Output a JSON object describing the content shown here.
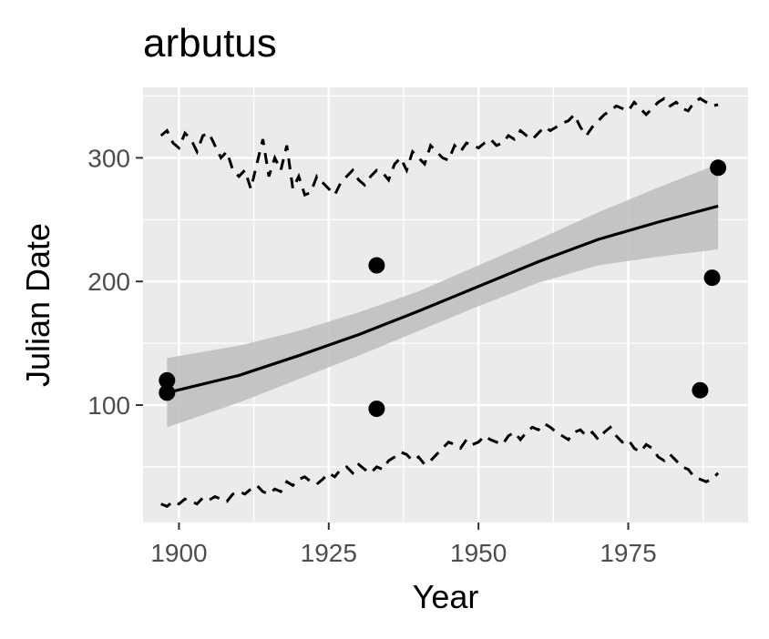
{
  "chart_data": {
    "type": "scatter",
    "title": "arbutus",
    "xlabel": "Year",
    "ylabel": "Julian Date",
    "xlim": [
      1894,
      1995
    ],
    "ylim": [
      5,
      357
    ],
    "x_ticks": [
      1900,
      1925,
      1950,
      1975
    ],
    "y_ticks": [
      100,
      200,
      300
    ],
    "grid": true,
    "legend": "none",
    "colors": {
      "panel": "#ebebeb",
      "grid": "#ffffff",
      "points": "#000000",
      "ribbon": "#bdbdbd",
      "tick_text": "#4d4d4d"
    },
    "points": [
      {
        "x": 1898,
        "y": 120
      },
      {
        "x": 1898,
        "y": 110
      },
      {
        "x": 1933,
        "y": 213
      },
      {
        "x": 1933,
        "y": 97
      },
      {
        "x": 1987,
        "y": 112
      },
      {
        "x": 1989,
        "y": 203
      },
      {
        "x": 1990,
        "y": 292
      }
    ],
    "smooth": {
      "x": [
        1898,
        1910,
        1920,
        1930,
        1940,
        1950,
        1960,
        1970,
        1980,
        1990
      ],
      "y": [
        110,
        124,
        140,
        157,
        176,
        196,
        216,
        234,
        248,
        261
      ],
      "lower": [
        82,
        102,
        121,
        140,
        160,
        180,
        199,
        213,
        220,
        226
      ],
      "upper": [
        138,
        148,
        160,
        175,
        192,
        213,
        234,
        256,
        276,
        295
      ]
    },
    "upper_bound": {
      "style": "dashed",
      "x": [
        1897,
        1898,
        1899,
        1900,
        1901,
        1902,
        1903,
        1904,
        1905,
        1906,
        1907,
        1908,
        1909,
        1910,
        1911,
        1912,
        1913,
        1914,
        1915,
        1916,
        1917,
        1918,
        1919,
        1920,
        1921,
        1922,
        1923,
        1924,
        1925,
        1926,
        1927,
        1928,
        1929,
        1930,
        1931,
        1932,
        1933,
        1934,
        1935,
        1936,
        1937,
        1938,
        1939,
        1940,
        1941,
        1942,
        1943,
        1944,
        1945,
        1946,
        1947,
        1948,
        1949,
        1950,
        1951,
        1952,
        1953,
        1954,
        1955,
        1956,
        1957,
        1958,
        1959,
        1960,
        1961,
        1962,
        1963,
        1964,
        1965,
        1966,
        1967,
        1968,
        1969,
        1970,
        1971,
        1972,
        1973,
        1974,
        1975,
        1976,
        1977,
        1978,
        1979,
        1980,
        1981,
        1982,
        1983,
        1984,
        1985,
        1986,
        1987,
        1988,
        1989,
        1990
      ],
      "y": [
        318,
        322,
        312,
        308,
        320,
        315,
        305,
        318,
        320,
        310,
        300,
        305,
        290,
        285,
        290,
        275,
        295,
        315,
        285,
        300,
        290,
        310,
        275,
        285,
        270,
        272,
        285,
        280,
        275,
        270,
        280,
        285,
        290,
        282,
        278,
        285,
        290,
        288,
        282,
        295,
        300,
        290,
        305,
        300,
        295,
        310,
        305,
        300,
        298,
        310,
        305,
        312,
        310,
        308,
        312,
        315,
        310,
        312,
        318,
        315,
        322,
        318,
        315,
        320,
        325,
        322,
        325,
        328,
        330,
        335,
        325,
        318,
        325,
        330,
        335,
        338,
        342,
        340,
        338,
        345,
        340,
        335,
        340,
        345,
        348,
        342,
        345,
        340,
        338,
        345,
        348,
        345,
        342,
        343
      ]
    },
    "lower_bound": {
      "style": "dashed",
      "x": [
        1897,
        1898,
        1899,
        1900,
        1901,
        1902,
        1903,
        1904,
        1905,
        1906,
        1907,
        1908,
        1909,
        1910,
        1911,
        1912,
        1913,
        1914,
        1915,
        1916,
        1917,
        1918,
        1919,
        1920,
        1921,
        1922,
        1923,
        1924,
        1925,
        1926,
        1927,
        1928,
        1929,
        1930,
        1931,
        1932,
        1933,
        1934,
        1935,
        1936,
        1937,
        1938,
        1939,
        1940,
        1941,
        1942,
        1943,
        1944,
        1945,
        1946,
        1947,
        1948,
        1949,
        1950,
        1951,
        1952,
        1953,
        1954,
        1955,
        1956,
        1957,
        1958,
        1959,
        1960,
        1961,
        1962,
        1963,
        1964,
        1965,
        1966,
        1967,
        1968,
        1969,
        1970,
        1971,
        1972,
        1973,
        1974,
        1975,
        1976,
        1977,
        1978,
        1979,
        1980,
        1981,
        1982,
        1983,
        1984,
        1985,
        1986,
        1987,
        1988,
        1989,
        1990
      ],
      "y": [
        20,
        18,
        22,
        20,
        24,
        22,
        20,
        25,
        23,
        26,
        24,
        22,
        28,
        30,
        28,
        32,
        35,
        30,
        28,
        32,
        30,
        38,
        35,
        40,
        42,
        38,
        36,
        40,
        45,
        42,
        48,
        50,
        45,
        52,
        48,
        45,
        50,
        48,
        55,
        58,
        62,
        60,
        55,
        58,
        52,
        55,
        60,
        65,
        70,
        68,
        65,
        72,
        68,
        70,
        75,
        72,
        70,
        68,
        75,
        78,
        72,
        78,
        82,
        80,
        85,
        82,
        78,
        75,
        72,
        78,
        80,
        75,
        78,
        72,
        78,
        82,
        75,
        70,
        72,
        65,
        62,
        68,
        65,
        58,
        55,
        60,
        55,
        50,
        48,
        42,
        40,
        38,
        40,
        45
      ]
    }
  }
}
